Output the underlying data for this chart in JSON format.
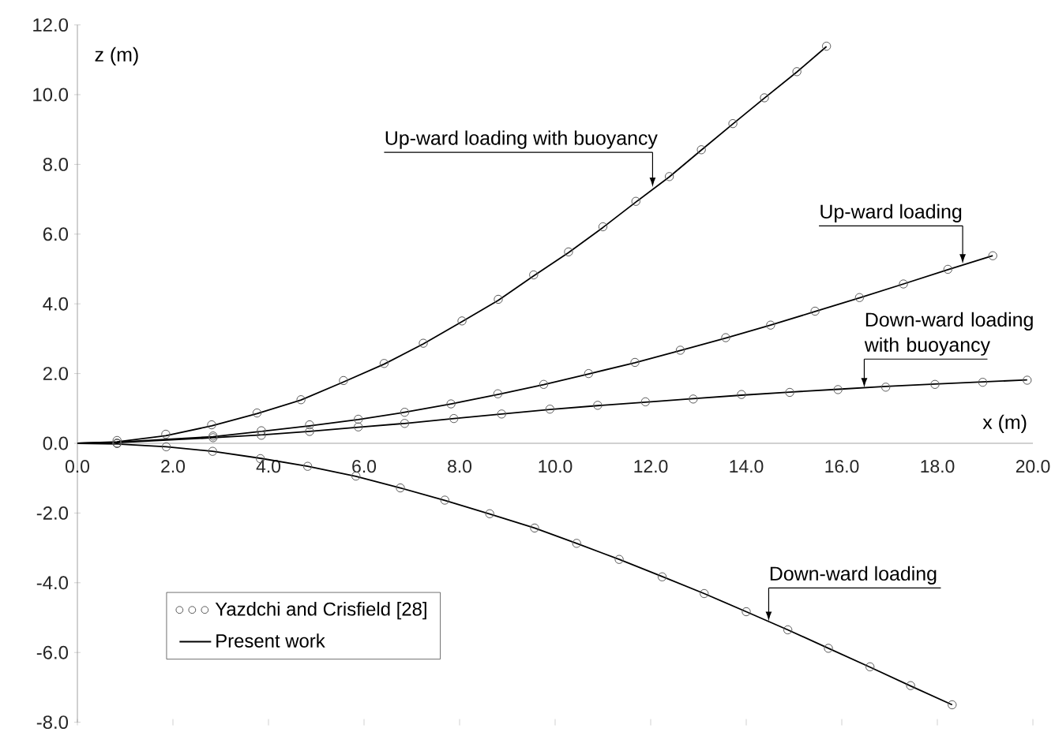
{
  "chart_data": {
    "type": "line",
    "xlabel": "x (m)",
    "ylabel": "z (m)",
    "xlim": [
      0,
      20
    ],
    "ylim": [
      -8,
      12
    ],
    "xticks": [
      {
        "value": 0,
        "label": "0.0"
      },
      {
        "value": 2,
        "label": "2.0"
      },
      {
        "value": 4,
        "label": "4.0"
      },
      {
        "value": 6,
        "label": "6.0"
      },
      {
        "value": 8,
        "label": "8.0"
      },
      {
        "value": 10,
        "label": "10.0"
      },
      {
        "value": 12,
        "label": "12.0"
      },
      {
        "value": 14,
        "label": "14.0"
      },
      {
        "value": 16,
        "label": "16.0"
      },
      {
        "value": 18,
        "label": "18.0"
      },
      {
        "value": 20,
        "label": "20.0"
      }
    ],
    "yticks": [
      {
        "value": -8,
        "label": "-8.0"
      },
      {
        "value": -6,
        "label": "-6.0"
      },
      {
        "value": -4,
        "label": "-4.0"
      },
      {
        "value": -2,
        "label": "-2.0"
      },
      {
        "value": 0,
        "label": "0.0"
      },
      {
        "value": 2,
        "label": "2.0"
      },
      {
        "value": 4,
        "label": "4.0"
      },
      {
        "value": 6,
        "label": "6.0"
      },
      {
        "value": 8,
        "label": "8.0"
      },
      {
        "value": 10,
        "label": "10.0"
      },
      {
        "value": 12,
        "label": "12.0"
      }
    ],
    "legend": "bottom left",
    "line_style": "solid",
    "annotations": [
      {
        "text": "Up-ward loading with buoyancy",
        "x": 12.04,
        "y": 7.35
      },
      {
        "text": "Up-ward loading",
        "x": 18.53,
        "y": 5.15
      },
      {
        "text": "Down-ward loading with buoyancy",
        "x": 16.47,
        "y": 1.6
      },
      {
        "text": "Down-ward loading",
        "x": 14.47,
        "y": -5.1
      }
    ],
    "series": [
      {
        "name": "Yazdchi and Crisfield [28]",
        "type": "scatter",
        "marker": "circle",
        "color": "#595959",
        "x": [
          0.83,
          1.85,
          2.81,
          3.76,
          4.68,
          5.57,
          6.42,
          7.24,
          8.05,
          8.81,
          9.55,
          10.28,
          11.0,
          11.69,
          12.39,
          13.06,
          13.72,
          14.38,
          15.06,
          15.68
        ],
        "values": [
          0.08,
          0.26,
          0.53,
          0.87,
          1.25,
          1.8,
          2.29,
          2.87,
          3.51,
          4.13,
          4.83,
          5.49,
          6.21,
          6.94,
          7.65,
          8.42,
          9.17,
          9.91,
          10.66,
          11.39
        ]
      },
      {
        "type": "scatter",
        "marker": "circle",
        "color": "#595959",
        "x": [
          0.83,
          2.84,
          3.85,
          4.86,
          5.88,
          6.85,
          7.82,
          8.8,
          9.76,
          10.7,
          11.67,
          12.62,
          13.57,
          14.51,
          15.44,
          16.37,
          17.29,
          18.22,
          19.16
        ],
        "values": [
          0.0,
          0.21,
          0.36,
          0.53,
          0.69,
          0.89,
          1.13,
          1.42,
          1.69,
          2.0,
          2.32,
          2.67,
          3.03,
          3.39,
          3.79,
          4.18,
          4.57,
          4.99,
          5.38
        ]
      },
      {
        "type": "scatter",
        "marker": "circle",
        "color": "#595959",
        "x": [
          0.83,
          2.84,
          3.85,
          4.86,
          5.88,
          6.85,
          7.88,
          8.88,
          9.89,
          10.89,
          11.89,
          12.89,
          13.9,
          14.91,
          15.92,
          16.92,
          17.95,
          18.95,
          19.88
        ],
        "values": [
          0.0,
          0.16,
          0.23,
          0.34,
          0.47,
          0.57,
          0.71,
          0.84,
          0.98,
          1.09,
          1.19,
          1.27,
          1.4,
          1.46,
          1.54,
          1.61,
          1.69,
          1.75,
          1.81
        ]
      },
      {
        "type": "scatter",
        "marker": "circle",
        "color": "#595959",
        "x": [
          0.83,
          1.86,
          2.83,
          3.83,
          4.82,
          5.83,
          6.76,
          7.69,
          8.63,
          9.57,
          10.45,
          11.34,
          12.24,
          13.12,
          14.0,
          14.87,
          15.72,
          16.59,
          17.44,
          18.31
        ],
        "values": [
          0.0,
          -0.1,
          -0.23,
          -0.44,
          -0.66,
          -0.94,
          -1.28,
          -1.63,
          -2.02,
          -2.43,
          -2.87,
          -3.33,
          -3.83,
          -4.31,
          -4.83,
          -5.35,
          -5.88,
          -6.41,
          -6.95,
          -7.5
        ]
      },
      {
        "name": "Present work",
        "color": "#000000",
        "x": [
          0,
          0.83,
          1.85,
          2.81,
          3.76,
          4.68,
          5.57,
          6.42,
          7.24,
          8.05,
          8.81,
          9.55,
          10.28,
          11.0,
          11.69,
          12.39,
          13.06,
          13.72,
          14.38,
          15.06,
          15.68
        ],
        "values": [
          0,
          0.04,
          0.22,
          0.5,
          0.85,
          1.24,
          1.76,
          2.27,
          2.85,
          3.49,
          4.1,
          4.8,
          5.47,
          6.19,
          6.92,
          7.64,
          8.41,
          9.16,
          9.9,
          10.65,
          11.38
        ]
      },
      {
        "color": "#000000",
        "x": [
          0,
          0.83,
          2.84,
          3.85,
          4.86,
          5.88,
          6.85,
          7.82,
          8.8,
          9.76,
          10.7,
          11.67,
          12.62,
          13.57,
          14.51,
          15.44,
          16.37,
          17.29,
          18.22,
          19.16
        ],
        "values": [
          0,
          0.03,
          0.19,
          0.34,
          0.5,
          0.68,
          0.89,
          1.13,
          1.4,
          1.68,
          1.99,
          2.31,
          2.66,
          3.02,
          3.39,
          3.78,
          4.17,
          4.57,
          4.98,
          5.38
        ]
      },
      {
        "color": "#000000",
        "x": [
          0,
          0.83,
          2.84,
          3.85,
          4.86,
          5.88,
          6.85,
          7.88,
          8.88,
          9.89,
          10.89,
          11.89,
          12.89,
          13.9,
          14.91,
          15.92,
          16.92,
          17.95,
          18.95,
          19.88
        ],
        "values": [
          0,
          0.02,
          0.16,
          0.24,
          0.34,
          0.46,
          0.57,
          0.71,
          0.84,
          0.97,
          1.08,
          1.18,
          1.28,
          1.38,
          1.47,
          1.55,
          1.63,
          1.7,
          1.76,
          1.82
        ]
      },
      {
        "color": "#000000",
        "x": [
          0,
          0.83,
          1.86,
          2.83,
          3.83,
          4.82,
          5.83,
          6.76,
          7.69,
          8.63,
          9.57,
          10.45,
          11.34,
          12.24,
          13.12,
          14.0,
          14.87,
          15.72,
          16.59,
          17.44,
          18.31
        ],
        "values": [
          0,
          -0.02,
          -0.1,
          -0.23,
          -0.43,
          -0.66,
          -0.95,
          -1.28,
          -1.64,
          -2.03,
          -2.43,
          -2.87,
          -3.33,
          -3.82,
          -4.31,
          -4.83,
          -5.35,
          -5.88,
          -6.42,
          -6.96,
          -7.5
        ]
      }
    ]
  }
}
